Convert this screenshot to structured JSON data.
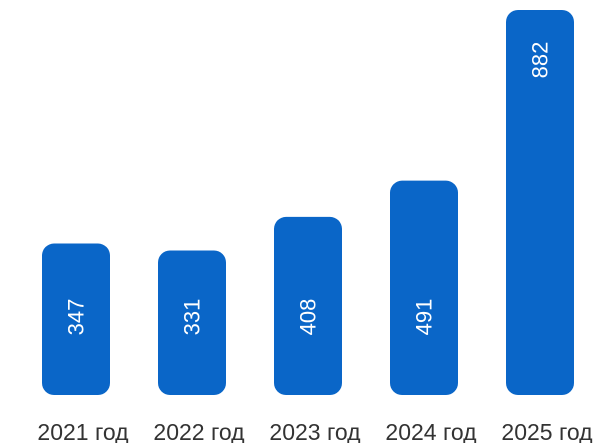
{
  "chart_data": {
    "type": "bar",
    "categories": [
      "2021 год",
      "2022 год",
      "2023 год",
      "2024 год",
      "2025 год"
    ],
    "values": [
      347,
      331,
      408,
      491,
      882
    ],
    "title": "",
    "xlabel": "",
    "ylabel": "",
    "ylim": [
      0,
      882
    ],
    "grid": false,
    "legend": "none",
    "data_labels": "inside-rotated",
    "bar_color": "#0a66c8",
    "label_color": "#ffffff",
    "category_label_color": "#333333"
  }
}
